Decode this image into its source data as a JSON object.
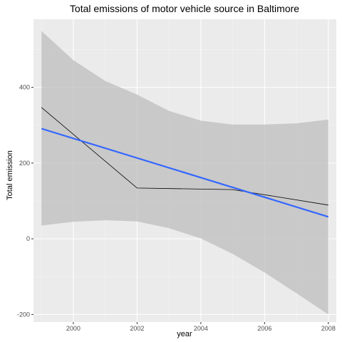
{
  "chart_data": {
    "type": "line",
    "title": "Total emissions of motor vehicle source in Baltimore",
    "xlabel": "year",
    "ylabel": "Total emission",
    "xlim": [
      1998.75,
      2008.25
    ],
    "ylim": [
      -220,
      580
    ],
    "x_ticks": [
      2000,
      2002,
      2004,
      2006,
      2008
    ],
    "x_tick_labels": [
      "2000",
      "2002",
      "2004",
      "2006",
      "2008"
    ],
    "y_ticks": [
      -200,
      0,
      200,
      400
    ],
    "y_tick_labels": [
      "-200",
      "0",
      "200",
      "400"
    ],
    "grid": true,
    "series": [
      {
        "kind": "line",
        "color": "#000000",
        "x": [
          1999,
          2002,
          2005,
          2008
        ],
        "y": [
          347,
          134,
          130,
          89
        ]
      },
      {
        "kind": "regression",
        "color": "#3366ff",
        "x": [
          1999,
          2008
        ],
        "y": [
          291,
          58
        ]
      }
    ],
    "confidence_band": {
      "color": "#bdbdbd",
      "x": [
        1999,
        2000,
        2001,
        2002,
        2003,
        2004,
        2005,
        2006,
        2007,
        2008
      ],
      "upper": [
        549,
        472,
        417,
        381,
        338,
        312,
        302,
        302,
        305,
        315
      ],
      "lower": [
        35,
        45,
        49,
        46,
        28,
        1,
        -40,
        -89,
        -144,
        -200
      ]
    }
  }
}
